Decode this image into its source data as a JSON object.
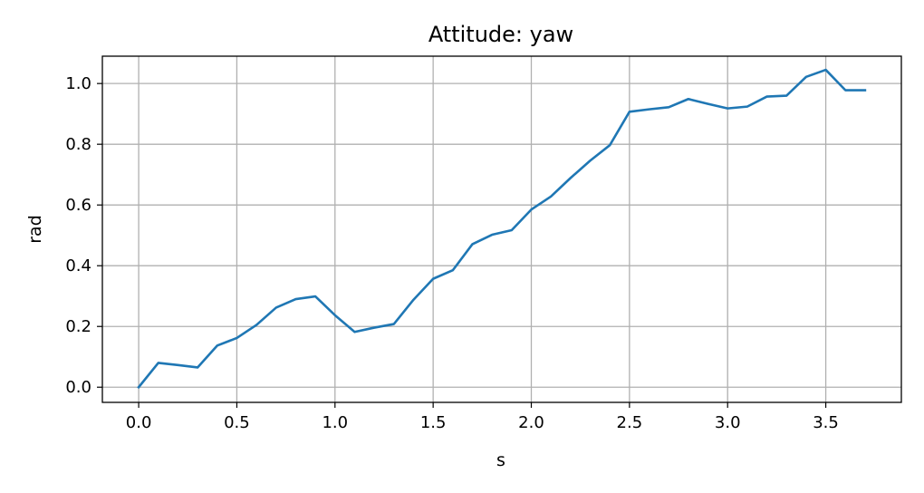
{
  "chart_data": {
    "type": "line",
    "title": "Attitude: yaw",
    "xlabel": "s",
    "ylabel": "rad",
    "xlim": [
      -0.185,
      3.885
    ],
    "ylim": [
      -0.05,
      1.09
    ],
    "xticks": [
      "0.0",
      "0.5",
      "1.0",
      "1.5",
      "2.0",
      "2.5",
      "3.0",
      "3.5"
    ],
    "yticks": [
      "0.0",
      "0.2",
      "0.4",
      "0.6",
      "0.8",
      "1.0"
    ],
    "grid": true,
    "series": [
      {
        "color": "#1f77b4",
        "x": [
          0.0,
          0.1,
          0.2,
          0.3,
          0.4,
          0.5,
          0.6,
          0.7,
          0.8,
          0.9,
          1.0,
          1.1,
          1.2,
          1.3,
          1.4,
          1.5,
          1.6,
          1.7,
          1.8,
          1.9,
          2.0,
          2.1,
          2.2,
          2.3,
          2.4,
          2.5,
          2.6,
          2.7,
          2.8,
          2.9,
          3.0,
          3.1,
          3.2,
          3.3,
          3.4,
          3.5,
          3.6,
          3.7
        ],
        "y": [
          0.0,
          0.08,
          0.073,
          0.065,
          0.137,
          0.162,
          0.205,
          0.262,
          0.29,
          0.299,
          0.237,
          0.182,
          0.196,
          0.208,
          0.288,
          0.357,
          0.385,
          0.471,
          0.502,
          0.517,
          0.585,
          0.628,
          0.689,
          0.746,
          0.797,
          0.907,
          0.915,
          0.922,
          0.949,
          0.933,
          0.918,
          0.924,
          0.957,
          0.96,
          1.022,
          1.045,
          0.978,
          0.978
        ]
      }
    ]
  }
}
